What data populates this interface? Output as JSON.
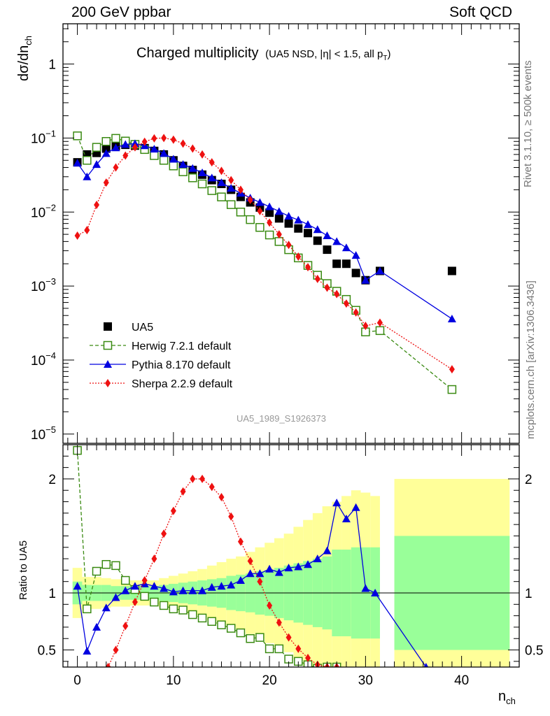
{
  "header": {
    "left": "200 GeV ppbar",
    "right": "Soft QCD"
  },
  "side_labels": {
    "rivet": "Rivet 3.1.10, ≥ 500k events",
    "mcplots": "mcplots.cern.ch [arXiv:1306.3436]"
  },
  "reference_id": "UA5_1989_S1926373",
  "colors": {
    "data": "#000000",
    "herwig": "#3a8a12",
    "pythia": "#0000e0",
    "sherpa": "#ee1111",
    "band_inner": "#99ff99",
    "band_outer": "#ffff99"
  },
  "chart_data": [
    {
      "type": "scatter",
      "name": "main",
      "title": "Charged multiplicity",
      "subtitle": "(UA5 NSD, |η| < 1.5, all p",
      "subtitle_sub": "T",
      "subtitle_end": ")",
      "ylabel": "dσ/dn",
      "ylabel_sub": "ch",
      "yscale": "log",
      "ylim": [
        7.5e-06,
        3.5
      ],
      "xlim": [
        -1.5,
        46
      ],
      "xticks": [
        0,
        10,
        20,
        30,
        40
      ],
      "ytick_exponents": [
        -5,
        -4,
        -3,
        -2,
        -1,
        0
      ],
      "ytick_labels": [
        "10",
        "10",
        "10",
        "10",
        "10",
        "1"
      ],
      "ytick_superscripts": [
        "−5",
        "−4",
        "−3",
        "−2",
        "−1",
        ""
      ],
      "legend": [
        {
          "name": "UA5",
          "series": "data"
        },
        {
          "name": "Herwig 7.2.1 default",
          "series": "herwig"
        },
        {
          "name": "Pythia 8.170 default",
          "series": "pythia"
        },
        {
          "name": "Sherpa 2.2.9 default",
          "series": "sherpa"
        }
      ],
      "series": [
        {
          "name": "UA5",
          "id": "data",
          "marker": "square",
          "line": "none",
          "x": [
            0,
            1,
            2,
            3,
            4,
            5,
            6,
            7,
            8,
            9,
            10,
            11,
            12,
            13,
            14,
            15,
            16,
            17,
            18,
            19,
            20,
            21,
            22,
            23,
            24,
            25,
            26,
            27,
            28,
            29,
            30,
            31.5,
            39
          ],
          "y": [
            0.047,
            0.06,
            0.063,
            0.072,
            0.078,
            0.081,
            0.079,
            0.073,
            0.067,
            0.06,
            0.05,
            0.042,
            0.037,
            0.032,
            0.027,
            0.024,
            0.02,
            0.016,
            0.0135,
            0.0115,
            0.0098,
            0.0082,
            0.007,
            0.006,
            0.0052,
            0.0041,
            0.0031,
            0.002,
            0.002,
            0.0015,
            0.0012,
            0.0016,
            0.0016
          ]
        },
        {
          "name": "Herwig 7.2.1 default",
          "id": "herwig",
          "marker": "open-square",
          "line": "dashed",
          "x": [
            0,
            1,
            2,
            3,
            4,
            5,
            6,
            7,
            8,
            9,
            10,
            11,
            12,
            13,
            14,
            15,
            16,
            17,
            18,
            19,
            20,
            21,
            22,
            23,
            24,
            25,
            26,
            27,
            28,
            29,
            30,
            31.5,
            39
          ],
          "y": [
            0.107,
            0.05,
            0.075,
            0.09,
            0.099,
            0.091,
            0.082,
            0.07,
            0.058,
            0.05,
            0.042,
            0.035,
            0.029,
            0.024,
            0.0195,
            0.016,
            0.0126,
            0.01,
            0.0079,
            0.0062,
            0.0049,
            0.004,
            0.0031,
            0.0024,
            0.0019,
            0.0014,
            0.00108,
            0.00085,
            0.00066,
            0.00047,
            0.00024,
            0.00025,
            4e-05
          ]
        },
        {
          "name": "Pythia 8.170 default",
          "id": "pythia",
          "marker": "triangle",
          "line": "solid",
          "x": [
            0,
            1,
            2,
            3,
            4,
            5,
            6,
            7,
            8,
            9,
            10,
            11,
            12,
            13,
            14,
            15,
            16,
            17,
            18,
            19,
            20,
            21,
            22,
            23,
            24,
            25,
            26,
            27,
            28,
            29,
            30,
            31.5,
            39
          ],
          "y": [
            0.046,
            0.03,
            0.044,
            0.062,
            0.074,
            0.082,
            0.084,
            0.079,
            0.071,
            0.062,
            0.052,
            0.044,
            0.039,
            0.034,
            0.029,
            0.025,
            0.021,
            0.018,
            0.0155,
            0.0135,
            0.0118,
            0.0102,
            0.0088,
            0.0078,
            0.0068,
            0.0058,
            0.0048,
            0.004,
            0.0033,
            0.0026,
            0.0012,
            0.0016,
            0.00036
          ]
        },
        {
          "name": "Sherpa 2.2.9 default",
          "id": "sherpa",
          "marker": "diamond",
          "line": "dotted",
          "x": [
            0,
            1,
            2,
            3,
            4,
            5,
            6,
            7,
            8,
            9,
            10,
            11,
            12,
            13,
            14,
            15,
            16,
            17,
            18,
            19,
            20,
            21,
            22,
            23,
            24,
            25,
            26,
            27,
            28,
            29,
            30,
            31.5,
            39
          ],
          "y": [
            0.0048,
            0.0057,
            0.0125,
            0.025,
            0.04,
            0.058,
            0.075,
            0.089,
            0.099,
            0.1,
            0.095,
            0.084,
            0.072,
            0.06,
            0.047,
            0.036,
            0.027,
            0.02,
            0.0146,
            0.0103,
            0.0072,
            0.005,
            0.0036,
            0.0025,
            0.0018,
            0.00125,
            0.00095,
            0.00078,
            0.00058,
            0.00044,
            0.00029,
            0.00032,
            7.5e-05
          ]
        }
      ]
    },
    {
      "type": "scatter",
      "name": "ratio",
      "ylabel": "Ratio to UA5",
      "xlabel": "n",
      "xlabel_sub": "ch",
      "ylim": [
        0.35,
        2.3
      ],
      "xlim": [
        -1.5,
        46
      ],
      "xticks": [
        0,
        10,
        20,
        30,
        40
      ],
      "yticks": [
        0.5,
        1,
        2
      ],
      "ytick_labels": [
        "0.5",
        "1",
        "2"
      ],
      "bands": {
        "edges": [
          -0.5,
          0.5,
          1.5,
          2.5,
          3.5,
          4.5,
          5.5,
          6.5,
          7.5,
          8.5,
          9.5,
          10.5,
          11.5,
          12.5,
          13.5,
          14.5,
          15.5,
          16.5,
          17.5,
          18.5,
          19.5,
          20.5,
          21.5,
          22.5,
          23.5,
          24.5,
          25.5,
          26.5,
          27.5,
          28.5,
          29.5,
          30.5,
          31.5,
          33,
          45
        ],
        "inner_half": [
          0.1,
          0.07,
          0.07,
          0.07,
          0.06,
          0.06,
          0.06,
          0.06,
          0.06,
          0.07,
          0.08,
          0.09,
          0.1,
          0.11,
          0.12,
          0.13,
          0.15,
          0.16,
          0.17,
          0.19,
          0.2,
          0.22,
          0.24,
          0.26,
          0.28,
          0.3,
          0.32,
          0.38,
          0.38,
          0.4,
          0.4,
          0.4,
          null,
          0.5
        ],
        "outer_half": [
          0.22,
          0.14,
          0.14,
          0.13,
          0.12,
          0.12,
          0.11,
          0.11,
          0.11,
          0.13,
          0.15,
          0.17,
          0.19,
          0.21,
          0.24,
          0.27,
          0.3,
          0.32,
          0.36,
          0.4,
          0.44,
          0.48,
          0.52,
          0.58,
          0.64,
          0.7,
          0.76,
          0.8,
          0.85,
          0.9,
          0.88,
          0.85,
          null,
          1.0
        ]
      },
      "series": [
        {
          "name": "Herwig 7.2.1 default",
          "id": "herwig",
          "marker": "open-square",
          "line": "dashed",
          "x": [
            0,
            1,
            2,
            3,
            4,
            5,
            6,
            7,
            8,
            9,
            10,
            11,
            12,
            13,
            14,
            15,
            16,
            17,
            18,
            19,
            20,
            21,
            22,
            23,
            24,
            25,
            26,
            27
          ],
          "y": [
            2.25,
            0.86,
            1.19,
            1.25,
            1.24,
            1.11,
            1.03,
            0.97,
            0.92,
            0.89,
            0.86,
            0.85,
            0.81,
            0.78,
            0.75,
            0.72,
            0.69,
            0.65,
            0.6,
            0.61,
            0.51,
            0.51,
            0.42,
            0.4,
            0.37,
            0.34,
            0.35,
            0.35
          ]
        },
        {
          "name": "Pythia 8.170 default",
          "id": "pythia",
          "marker": "triangle",
          "line": "solid",
          "x": [
            0,
            1,
            2,
            3,
            4,
            5,
            6,
            7,
            8,
            9,
            10,
            11,
            12,
            13,
            14,
            15,
            16,
            17,
            18,
            19,
            20,
            21,
            22,
            23,
            24,
            25,
            26,
            27,
            28,
            29,
            30,
            31,
            36.3
          ],
          "y": [
            1.06,
            0.49,
            0.7,
            0.87,
            0.96,
            1.02,
            1.06,
            1.08,
            1.06,
            1.04,
            1.01,
            1.02,
            1.02,
            1.02,
            1.05,
            1.06,
            1.07,
            1.11,
            1.17,
            1.17,
            1.21,
            1.18,
            1.22,
            1.23,
            1.25,
            1.3,
            1.37,
            1.79,
            1.65,
            1.75,
            1.04,
            1.0,
            0.35
          ]
        },
        {
          "name": "Sherpa 2.2.9 default",
          "id": "sherpa",
          "marker": "diamond",
          "line": "dotted",
          "x": [
            3.2,
            4,
            5,
            6,
            7,
            8,
            9,
            10,
            11,
            12,
            13,
            14,
            15,
            16,
            17,
            18,
            19,
            20,
            21,
            22,
            23,
            24,
            25,
            26,
            27
          ],
          "y": [
            0.35,
            0.5,
            0.71,
            0.92,
            1.11,
            1.3,
            1.52,
            1.72,
            1.89,
            2.0,
            2.0,
            1.93,
            1.84,
            1.67,
            1.45,
            1.28,
            1.1,
            0.89,
            0.74,
            0.61,
            0.51,
            0.43,
            0.37,
            0.35,
            0.35
          ]
        }
      ]
    }
  ]
}
